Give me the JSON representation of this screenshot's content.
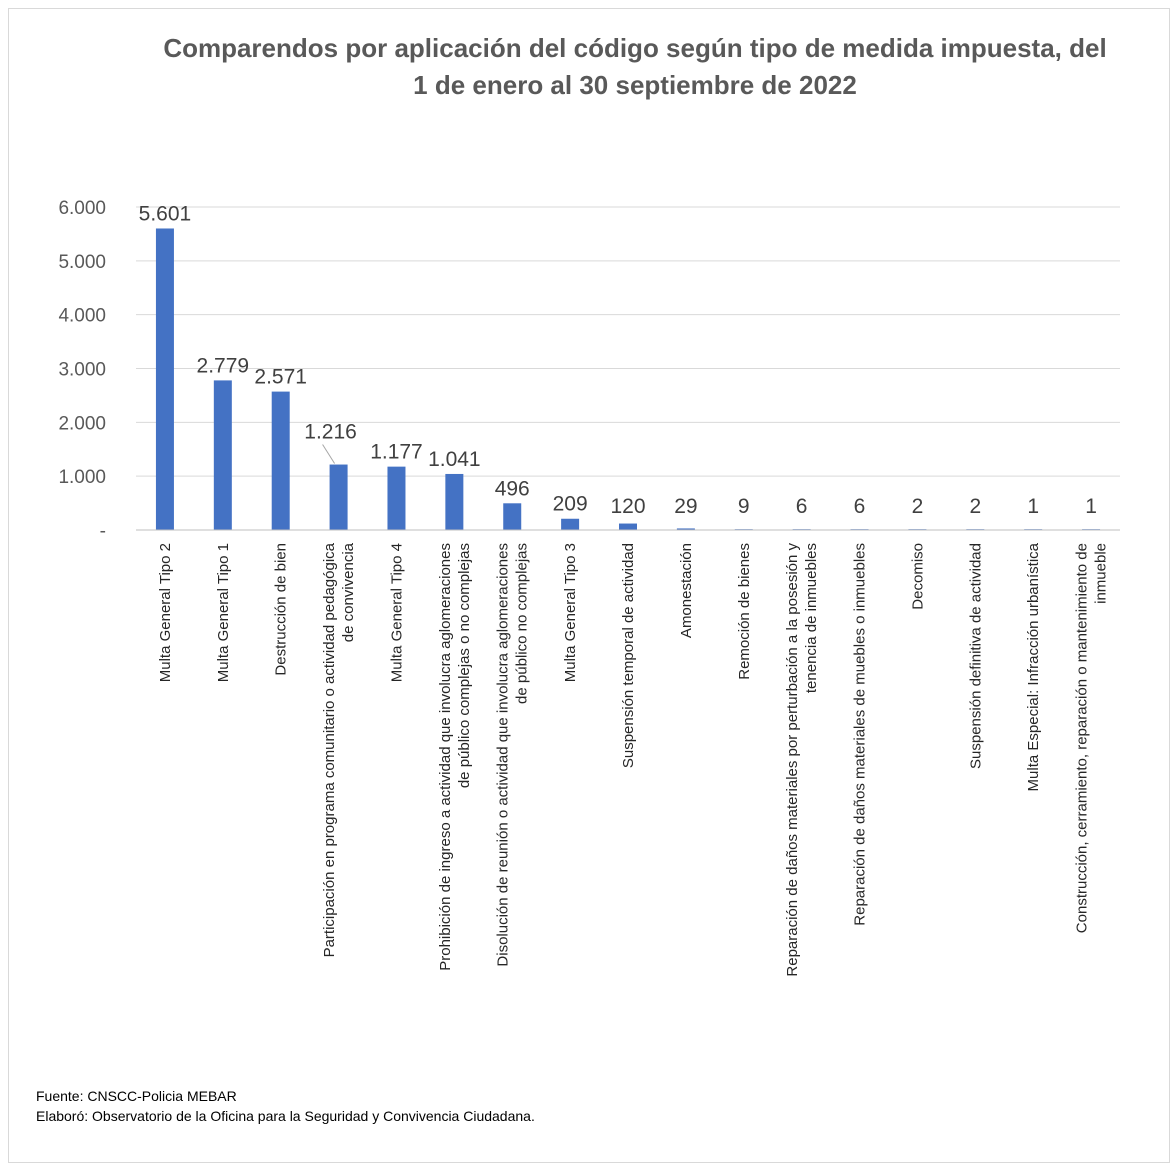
{
  "title_line1": "Comparendos por aplicación del código según tipo de medida impuesta, del",
  "title_line2": "1 de enero al 30 septiembre de 2022",
  "source_note": "Fuente: CNSCC-Policia MEBAR",
  "author_note": "Elaboró: Observatorio de la Oficina para la Seguridad y Convivencia Ciudadana.",
  "colors": {
    "bar": "#4472C4",
    "grid": "#d9d9d9",
    "text": "#595959"
  },
  "chart_data": {
    "type": "bar",
    "title": "Comparendos por aplicación del código según tipo de medida impuesta, del 1 de enero al 30 septiembre de 2022",
    "ylim": [
      0,
      6000
    ],
    "yticks": [
      {
        "value": 0,
        "label": "-"
      },
      {
        "value": 1000,
        "label": "1.000"
      },
      {
        "value": 2000,
        "label": "2.000"
      },
      {
        "value": 3000,
        "label": "3.000"
      },
      {
        "value": 4000,
        "label": "4.000"
      },
      {
        "value": 5000,
        "label": "5.000"
      },
      {
        "value": 6000,
        "label": "6.000"
      }
    ],
    "grid": true,
    "categories": [
      [
        "Multa General Tipo 2"
      ],
      [
        "Multa General Tipo 1"
      ],
      [
        "Destrucción de bien"
      ],
      [
        "Participación en programa comunitario o actividad pedagógica",
        "de convivencia"
      ],
      [
        "Multa General Tipo 4"
      ],
      [
        "Prohibición de ingreso a actividad que involucra aglomeraciones",
        "de público complejas o no complejas"
      ],
      [
        "Disolución de reunión o actividad que involucra aglomeraciones",
        "de público no complejas"
      ],
      [
        "Multa General Tipo 3"
      ],
      [
        "Suspensión temporal de actividad"
      ],
      [
        "Amonestación"
      ],
      [
        "Remoción de bienes"
      ],
      [
        "Reparación de daños materiales por perturbación a la posesión y",
        "tenencia de inmuebles"
      ],
      [
        "Reparación de daños materiales de muebles o inmuebles"
      ],
      [
        "Decomiso"
      ],
      [
        "Suspensión definitiva de actividad"
      ],
      [
        "Multa Especial: Infracción urbanística"
      ],
      [
        "Construcción, cerramiento, reparación o mantenimiento de",
        "inmueble"
      ]
    ],
    "values": [
      5601,
      2779,
      2571,
      1216,
      1177,
      1041,
      496,
      209,
      120,
      29,
      9,
      6,
      6,
      2,
      2,
      1,
      1
    ],
    "data_labels": [
      "5.601",
      "2.779",
      "2.571",
      "1.216",
      "1.177",
      "1.041",
      "496",
      "209",
      "120",
      "29",
      "9",
      "6",
      "6",
      "2",
      "2",
      "1",
      "1"
    ]
  }
}
